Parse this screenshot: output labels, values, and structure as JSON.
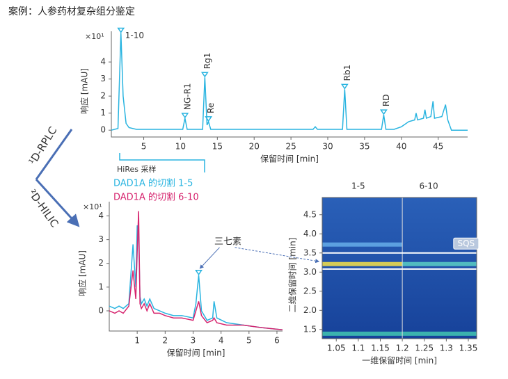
{
  "header": {
    "title": "案例：人参药材复杂组分鉴定"
  },
  "side_labels": [
    "¹D-RPLC",
    "²D-HILIC"
  ],
  "sampling_label": "HiRes 采样",
  "chart_data": [
    {
      "type": "line",
      "y_scale_label": "×10¹",
      "ylabel": "响应 [mAU]",
      "xlabel": "保留时间 [min]",
      "xlim": [
        0.6,
        49
      ],
      "ylim": [
        -0.4,
        5.8
      ],
      "xticks": [
        5,
        10,
        15,
        20,
        25,
        30,
        35,
        40,
        45
      ],
      "yticks": [
        0,
        1,
        2,
        3,
        4
      ],
      "x": [
        0.6,
        1.5,
        1.9,
        2.2,
        2.6,
        3,
        4,
        10.3,
        10.6,
        10.9,
        13.0,
        13.3,
        13.6,
        13.8,
        14.1,
        28,
        28.3,
        28.6,
        32.0,
        32.3,
        32.6,
        37.3,
        37.6,
        37.9,
        39,
        40,
        41,
        41.8,
        42,
        42.2,
        43,
        43.2,
        43.4,
        44,
        44.3,
        44.5,
        45.5,
        46,
        46.3,
        46.8,
        49
      ],
      "series": [
        {
          "name": null,
          "color": "#29b4e0",
          "values": [
            0,
            0.1,
            5.7,
            2,
            0.4,
            0.15,
            0.05,
            0.05,
            0.7,
            0.05,
            0.05,
            3.1,
            0.3,
            0.5,
            0.05,
            0.05,
            0.2,
            0.05,
            0.05,
            2.4,
            0.05,
            0.05,
            0.9,
            0.05,
            0.05,
            0.2,
            0.5,
            0.6,
            1.0,
            0.6,
            0.7,
            1.2,
            0.7,
            0.8,
            1.7,
            0.7,
            0.8,
            1.5,
            0.6,
            0,
            0
          ]
        }
      ],
      "annotations": [
        {
          "text": "1-10",
          "x": 1.9,
          "y": 5.7
        },
        {
          "text": "NG-R1",
          "x": 10.6,
          "y": 0.7
        },
        {
          "text": "Rg1",
          "x": 13.3,
          "y": 3.1
        },
        {
          "text": "Re",
          "x": 13.8,
          "y": 0.5
        },
        {
          "text": "Rb1",
          "x": 32.3,
          "y": 2.4
        },
        {
          "text": "RD",
          "x": 37.6,
          "y": 0.9
        }
      ]
    },
    {
      "type": "line",
      "y_scale_label": "×10¹",
      "ylabel": "响应 [mAU]",
      "xlabel": "保留时间 [min]",
      "xlim": [
        0,
        6.2
      ],
      "ylim": [
        -0.85,
        4.6
      ],
      "xticks": [
        1,
        2,
        3,
        4,
        5,
        6
      ],
      "yticks": [
        0,
        1,
        2,
        3,
        4
      ],
      "x": [
        0,
        0.2,
        0.35,
        0.5,
        0.7,
        0.85,
        0.95,
        1.0,
        1.05,
        1.1,
        1.15,
        1.25,
        1.35,
        1.45,
        1.6,
        1.8,
        2.0,
        2.3,
        2.6,
        3.0,
        3.1,
        3.2,
        3.3,
        3.5,
        3.7,
        3.75,
        3.85,
        4.2,
        4.8,
        5.4,
        6.2
      ],
      "series": [
        {
          "name": "DAD1A 的切割 1-5",
          "color": "#29b4e0",
          "values": [
            0.2,
            0.1,
            0.2,
            0.1,
            0.3,
            2.8,
            1.0,
            3.6,
            3.2,
            0.6,
            0.3,
            0.5,
            0.2,
            0.5,
            0.1,
            0.0,
            -0.1,
            -0.2,
            -0.2,
            -0.3,
            0.3,
            1.5,
            0.0,
            -0.4,
            -0.3,
            0.4,
            -0.3,
            -0.5,
            -0.6,
            -0.7,
            -0.8
          ]
        },
        {
          "name": "DAD1A 的切割 6-10",
          "color": "#d6246e",
          "values": [
            0.0,
            -0.1,
            0.0,
            -0.1,
            0.2,
            1.7,
            0.5,
            2.5,
            4.2,
            0.3,
            0.1,
            0.3,
            0.0,
            0.3,
            -0.1,
            -0.1,
            -0.2,
            -0.3,
            -0.3,
            -0.4,
            0.0,
            0.4,
            -0.2,
            -0.5,
            -0.4,
            -0.3,
            -0.5,
            -0.6,
            -0.6,
            -0.7,
            -0.8
          ]
        }
      ],
      "annotations": [
        {
          "text": "三七素",
          "x": 3.2,
          "y": 1.5
        }
      ]
    },
    {
      "type": "heatmap",
      "ylabel": "二维保留时间 [min]",
      "xlabel": "一维保留时间 [min]",
      "xlim": [
        1.018,
        1.369
      ],
      "ylim": [
        1.26,
        4.95
      ],
      "xticks": [
        1.05,
        1.1,
        1.15,
        1.2,
        1.25,
        1.3,
        1.35
      ],
      "yticks": [
        1.5,
        {
          "value": 2,
          "label": "2.0"
        },
        2.5,
        {
          "value": 3,
          "label": "3.0"
        },
        3.5,
        {
          "value": 4,
          "label": "4.0"
        },
        4.5
      ],
      "regions": [
        {
          "label": "1-5",
          "x": 1.1
        },
        {
          "label": "6-10",
          "x": 1.26
        }
      ],
      "cut_lines": {
        "x": [
          1.2
        ],
        "y": [
          3.5,
          3.08
        ]
      },
      "bands": [
        {
          "x": [
            1.018,
            1.2
          ],
          "y": 3.21,
          "color": "#e9d84c"
        },
        {
          "x": [
            1.2,
            1.369
          ],
          "y": 3.21,
          "color": "#56c6c2"
        },
        {
          "x": [
            1.018,
            1.2
          ],
          "y": 3.72,
          "color": "#63a9e6"
        },
        {
          "x": [
            1.018,
            1.369
          ],
          "y": 1.39,
          "color": "#3fbfb0"
        }
      ],
      "annotations": [
        {
          "text": "SQS",
          "x": 1.345,
          "y": 3.6
        }
      ]
    }
  ]
}
